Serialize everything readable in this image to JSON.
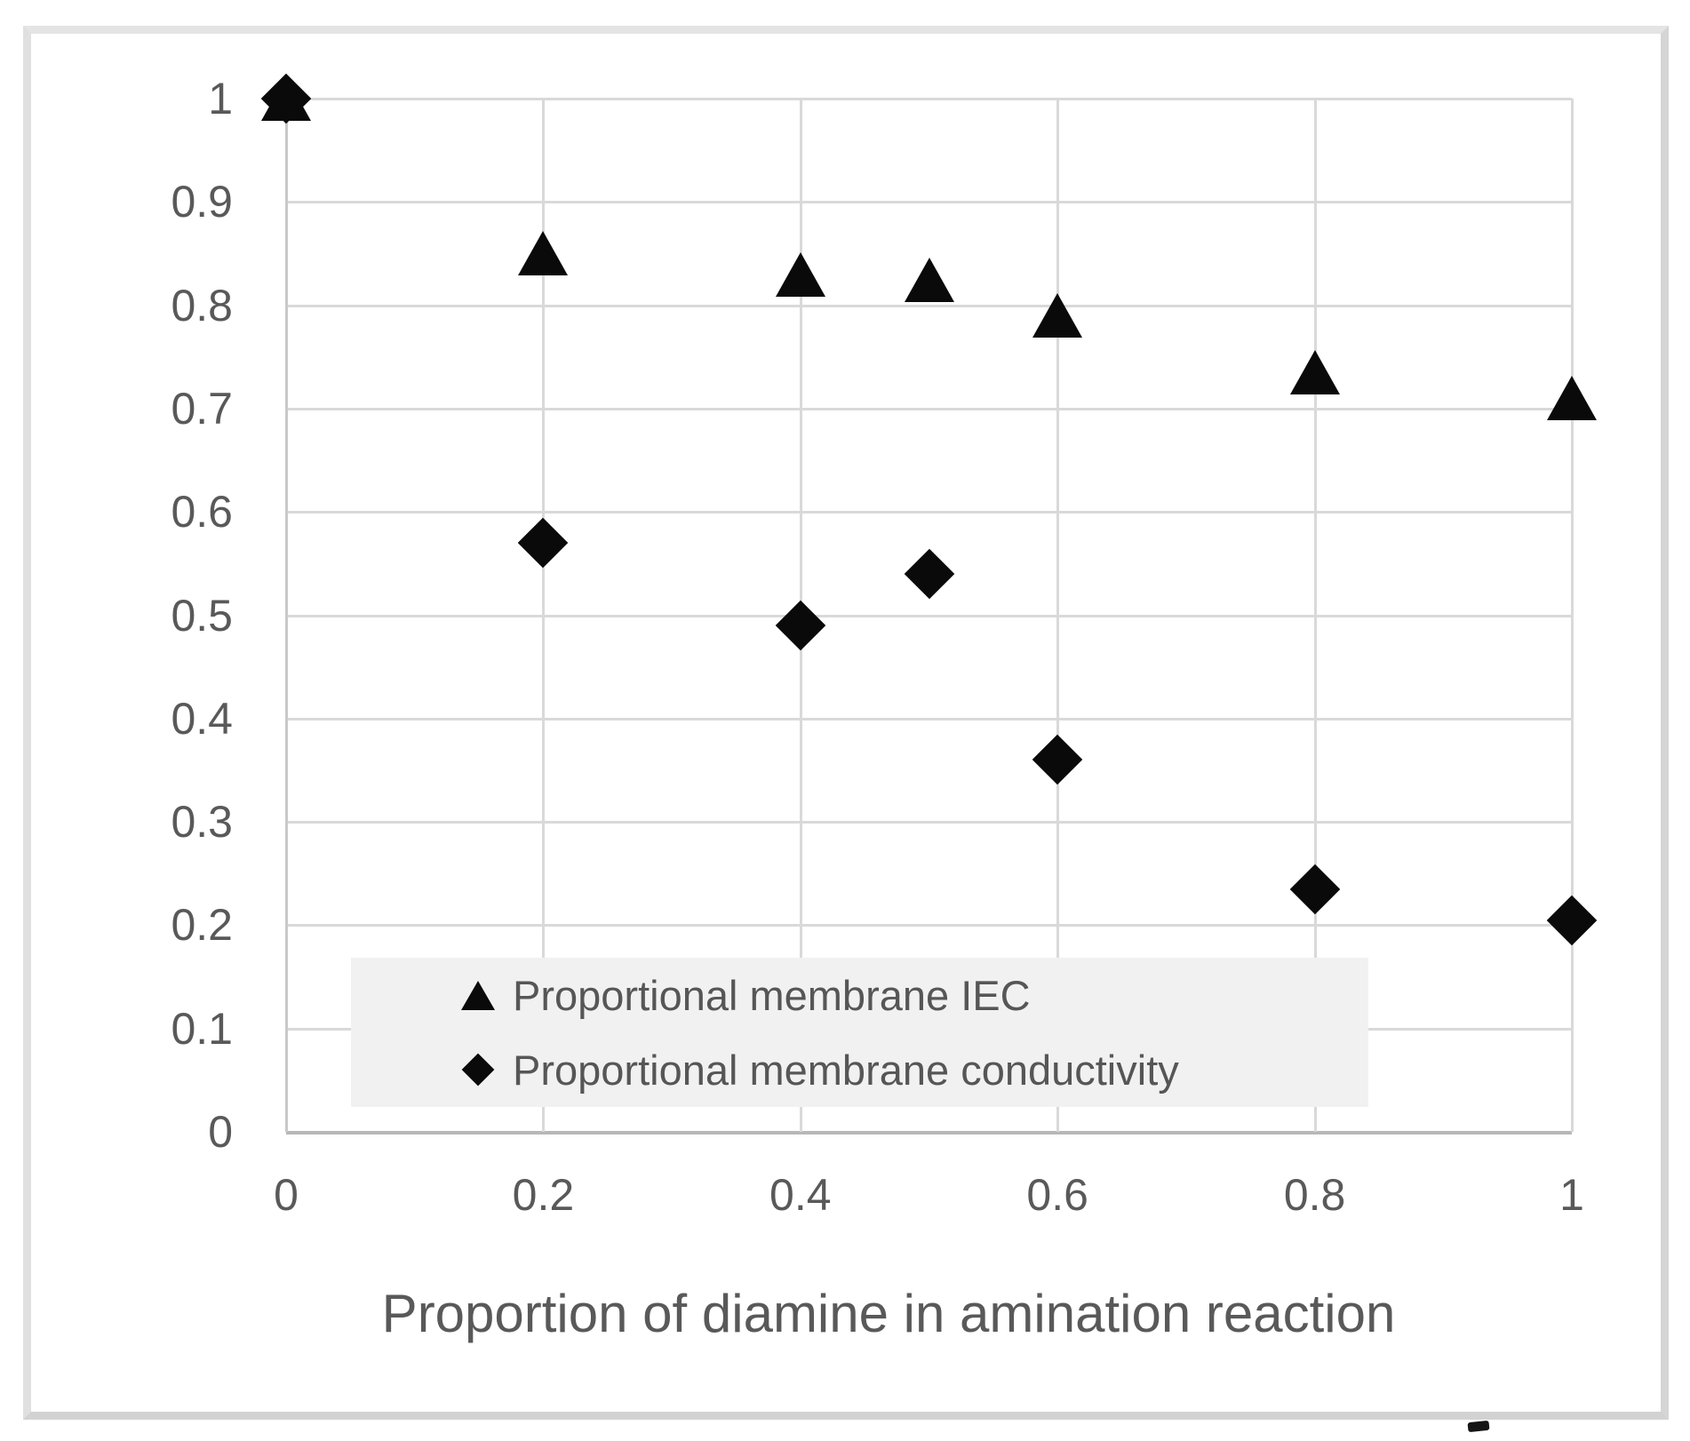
{
  "figure": {
    "background": "#ffffff",
    "frame_border_color": "#d9d9d9",
    "gridline_color": "#d9d9d9",
    "axis_line_color": "#b7b7b7",
    "text_color": "#595959",
    "marker_color": "#0a0a0a",
    "legend_background": "#f1f1f1"
  },
  "chart_data": {
    "type": "scatter",
    "title": "",
    "xlabel": "Proportion of diamine in amination reaction",
    "ylabel": "",
    "xlim": [
      0,
      1
    ],
    "ylim": [
      0,
      1
    ],
    "grid": true,
    "legend_position": "inside-bottom-left",
    "x_ticks": [
      {
        "v": 0,
        "label": "0"
      },
      {
        "v": 0.2,
        "label": "0.2"
      },
      {
        "v": 0.4,
        "label": "0.4"
      },
      {
        "v": 0.6,
        "label": "0.6"
      },
      {
        "v": 0.8,
        "label": "0.8"
      },
      {
        "v": 1,
        "label": "1"
      }
    ],
    "y_ticks": [
      {
        "v": 0,
        "label": "0"
      },
      {
        "v": 0.1,
        "label": "0.1"
      },
      {
        "v": 0.2,
        "label": "0.2"
      },
      {
        "v": 0.3,
        "label": "0.3"
      },
      {
        "v": 0.4,
        "label": "0.4"
      },
      {
        "v": 0.5,
        "label": "0.5"
      },
      {
        "v": 0.6,
        "label": "0.6"
      },
      {
        "v": 0.7,
        "label": "0.7"
      },
      {
        "v": 0.8,
        "label": "0.8"
      },
      {
        "v": 0.9,
        "label": "0.9"
      },
      {
        "v": 1,
        "label": "1"
      }
    ],
    "series": [
      {
        "name": "Proportional membrane IEC",
        "marker": "triangle",
        "x": [
          0,
          0.2,
          0.4,
          0.5,
          0.6,
          0.8,
          1.0
        ],
        "y": [
          1.0,
          0.85,
          0.83,
          0.825,
          0.79,
          0.735,
          0.71
        ]
      },
      {
        "name": "Proportional membrane conductivity",
        "marker": "diamond",
        "x": [
          0,
          0.2,
          0.4,
          0.5,
          0.6,
          0.8,
          1.0
        ],
        "y": [
          1.0,
          0.57,
          0.49,
          0.54,
          0.36,
          0.235,
          0.205
        ]
      }
    ]
  }
}
